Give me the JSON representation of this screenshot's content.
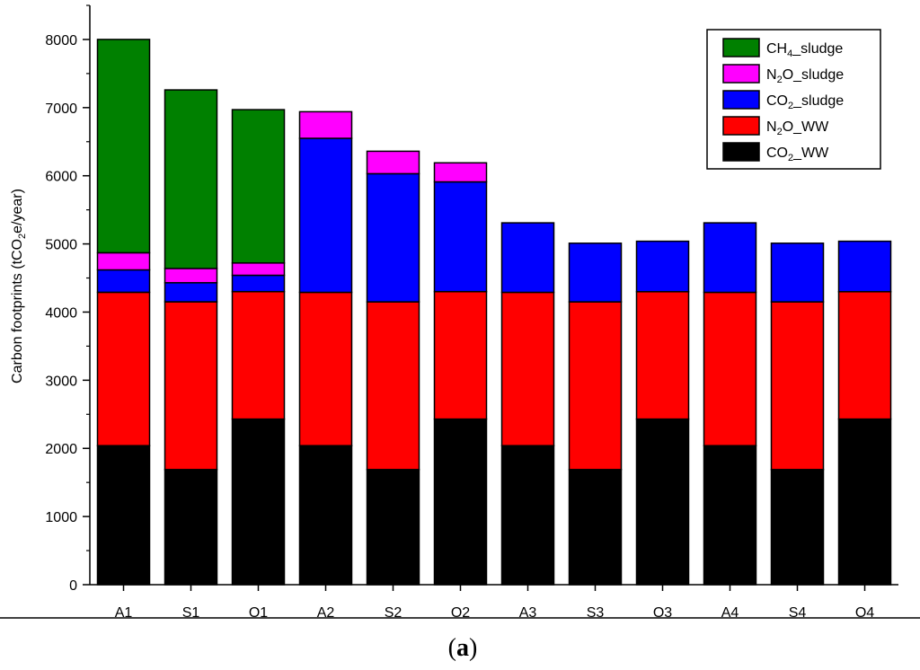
{
  "chart_data": {
    "type": "bar",
    "stacked": true,
    "categories": [
      "A1",
      "S1",
      "O1",
      "A2",
      "S2",
      "O2",
      "A3",
      "S3",
      "O3",
      "A4",
      "S4",
      "O4"
    ],
    "series": [
      {
        "name": "CO2_WW",
        "label_main": "CO",
        "label_sub": "2",
        "label_tail": "_WW",
        "color": "#000000",
        "values": [
          2040,
          1690,
          2430,
          2040,
          1690,
          2430,
          2040,
          1690,
          2430,
          2040,
          1690,
          2430
        ]
      },
      {
        "name": "N2O_WW",
        "label_main": "N",
        "label_sub": "2",
        "label_tail": "O_WW",
        "color": "#ff0000",
        "values": [
          2250,
          2460,
          1870,
          2250,
          2460,
          1870,
          2250,
          2460,
          1870,
          2250,
          2460,
          1870
        ]
      },
      {
        "name": "CO2_sludge",
        "label_main": "CO",
        "label_sub": "2",
        "label_tail": "_sludge",
        "color": "#0000ff",
        "values": [
          330,
          280,
          240,
          2260,
          1880,
          1610,
          1020,
          860,
          740,
          1020,
          860,
          740
        ]
      },
      {
        "name": "N2O_sludge",
        "label_main": "N",
        "label_sub": "2",
        "label_tail": "O_sludge",
        "color": "#ff00ff",
        "values": [
          250,
          210,
          180,
          390,
          330,
          280,
          0,
          0,
          0,
          0,
          0,
          0
        ]
      },
      {
        "name": "CH4_sludge",
        "label_main": "CH",
        "label_sub": "4",
        "label_tail": "_sludge",
        "color": "#008000",
        "values": [
          3130,
          2620,
          2250,
          0,
          0,
          0,
          0,
          0,
          0,
          0,
          0,
          0
        ]
      }
    ],
    "ylabel": "Carbon footprints (tCO2e/year)",
    "ylabel_parts": {
      "main": "Carbon footprints (tCO",
      "sub": "2",
      "tail": "e/year)"
    },
    "xlabel": "",
    "ylim": [
      0,
      8500
    ],
    "yticks": [
      0,
      1000,
      2000,
      3000,
      4000,
      5000,
      6000,
      7000,
      8000
    ],
    "legend": "top-right",
    "legend_order": [
      "CH4_sludge",
      "N2O_sludge",
      "CO2_sludge",
      "N2O_WW",
      "CO2_WW"
    ],
    "grid": false
  },
  "panel_label": {
    "open": "(",
    "letter": "a",
    "close": ")"
  }
}
